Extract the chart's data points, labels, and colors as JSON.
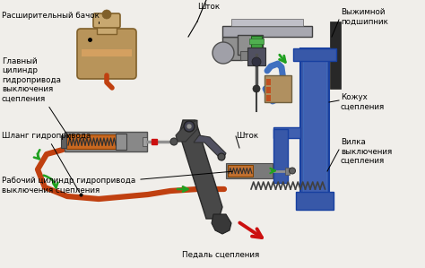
{
  "bg_color": "#f0eeea",
  "labels": {
    "rashiritelny_bachok": "Расширительный бачок",
    "glavny_tsilindr": "Главный\nцилиндр\nгидропривода\nвыключения\nсцепления",
    "shlang": "Шланг гидропривода",
    "rabochi_tsilindr": "Рабочий цилиндр гидропривода\nвыключения сцепления",
    "pedal": "Педаль сцепления",
    "shtok1": "Шток",
    "shtok2": "Шток",
    "vyzhimnoj": "Выжимной\nподшипник",
    "kozhukh": "Кожух\nсцепления",
    "vilka": "Вилка\nвыключения\nсцепления"
  },
  "colors": {
    "tank_body": "#b8945a",
    "tank_cap": "#c8a870",
    "tank_stripe": "#d4a060",
    "tank_dark": "#80602a",
    "cyl_outer": "#888888",
    "cyl_inner_orange": "#c86820",
    "cyl_inner_gray": "#707070",
    "spring_color": "#303030",
    "hose": "#c04010",
    "pedal_dark": "#484848",
    "pedal_mid": "#585868",
    "blue1": "#3858a8",
    "blue2": "#4060b0",
    "blue_light": "#6888d0",
    "gray_mech": "#808090",
    "gray_light": "#a0a8b0",
    "bearing_green": "#308830",
    "bearing_body": "#6878a0",
    "slave_orange": "#c07030",
    "slave_gray": "#7a7a7a",
    "arrow_green": "#20a020",
    "arrow_red": "#cc1010",
    "text": "#000000",
    "line": "#000000",
    "rod_color": "#a0a0a0",
    "fork_dark": "#585858",
    "spring_clutch": "#404040",
    "tan_part": "#b09060"
  }
}
